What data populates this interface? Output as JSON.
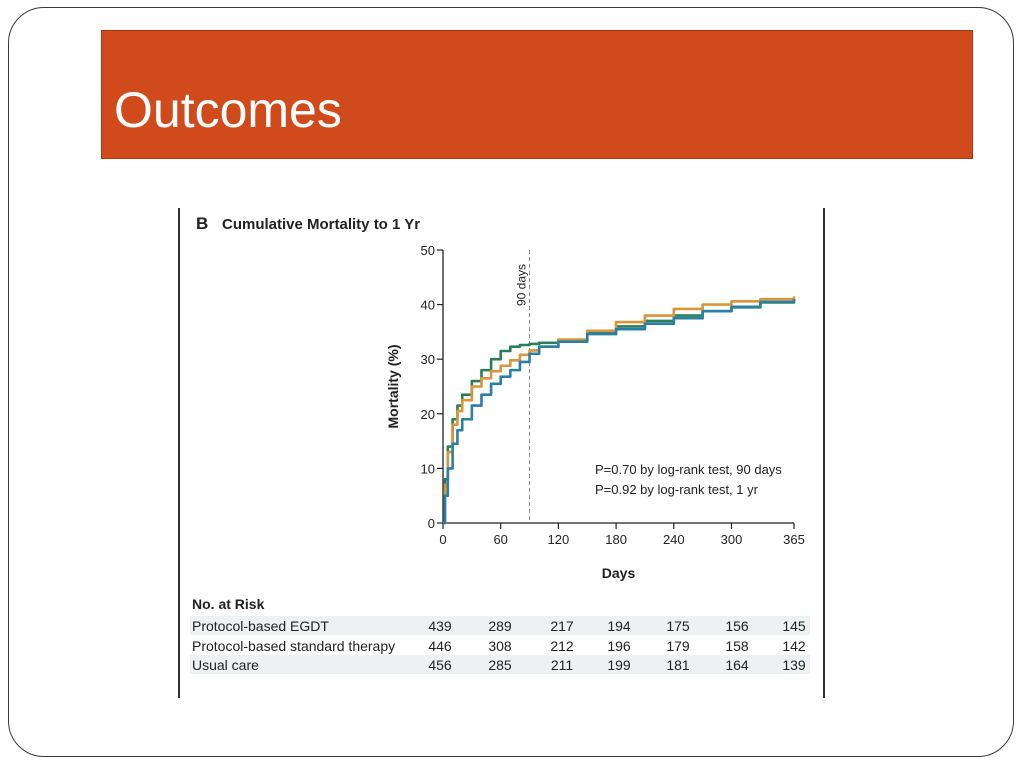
{
  "slide": {
    "title": "Outcomes"
  },
  "chart_data": {
    "type": "line",
    "panel_letter": "B",
    "title": "Cumulative Mortality to 1 Yr",
    "xlabel": "Days",
    "ylabel": "Mortality (%)",
    "xlim": [
      0,
      365
    ],
    "ylim": [
      0,
      50
    ],
    "x_ticks": [
      0,
      60,
      120,
      180,
      240,
      300,
      365
    ],
    "y_ticks": [
      0,
      10,
      20,
      30,
      40,
      50
    ],
    "reference_line": {
      "x": 90,
      "label": "90 days"
    },
    "annotations": [
      "P=0.70 by log-rank test, 90 days",
      "P=0.92 by log-rank test, 1 yr"
    ],
    "series": [
      {
        "name": "Protocol-based EGDT",
        "color": "#2a7f5a",
        "x": [
          0,
          2,
          5,
          10,
          15,
          20,
          30,
          40,
          50,
          60,
          70,
          80,
          90,
          100,
          120,
          150,
          180,
          210,
          240,
          270,
          300,
          330,
          365
        ],
        "y": [
          0,
          8,
          14,
          19,
          21.5,
          23.5,
          26,
          28,
          30,
          31.5,
          32.3,
          32.6,
          32.8,
          33,
          33.5,
          34.8,
          36,
          37,
          38,
          38.8,
          39.5,
          40.4,
          41
        ]
      },
      {
        "name": "Protocol-based standard therapy",
        "color": "#d9953a",
        "x": [
          0,
          2,
          5,
          10,
          15,
          20,
          30,
          40,
          50,
          60,
          70,
          80,
          90,
          100,
          120,
          150,
          180,
          210,
          240,
          270,
          300,
          330,
          365
        ],
        "y": [
          0,
          7,
          13,
          18,
          20.5,
          22.5,
          25,
          26.5,
          27.8,
          28.8,
          29.8,
          30.8,
          31.6,
          32.3,
          33.6,
          35.2,
          36.8,
          38,
          39.2,
          40,
          40.6,
          41,
          41.5
        ]
      },
      {
        "name": "Usual care",
        "color": "#2a7fa8",
        "x": [
          0,
          2,
          5,
          10,
          15,
          20,
          30,
          40,
          50,
          60,
          70,
          80,
          90,
          100,
          120,
          150,
          180,
          210,
          240,
          270,
          300,
          330,
          365
        ],
        "y": [
          0,
          5,
          10,
          14.5,
          17,
          19,
          21.5,
          23.5,
          25.5,
          26.8,
          28,
          29.5,
          31,
          32.3,
          33.2,
          34.6,
          35.5,
          36.5,
          37.5,
          38.8,
          39.6,
          40.5,
          41
        ]
      }
    ],
    "at_risk": {
      "header": "No. at Risk",
      "time_points": [
        0,
        60,
        120,
        180,
        240,
        300,
        365
      ],
      "rows": [
        {
          "label": "Protocol-based EGDT",
          "values": [
            "439",
            "289",
            "217",
            "194",
            "175",
            "156",
            "145"
          ]
        },
        {
          "label": "Protocol-based standard therapy",
          "values": [
            "446",
            "308",
            "212",
            "196",
            "179",
            "158",
            "142"
          ]
        },
        {
          "label": "Usual care",
          "values": [
            "456",
            "285",
            "211",
            "199",
            "181",
            "164",
            "139"
          ]
        }
      ]
    }
  }
}
